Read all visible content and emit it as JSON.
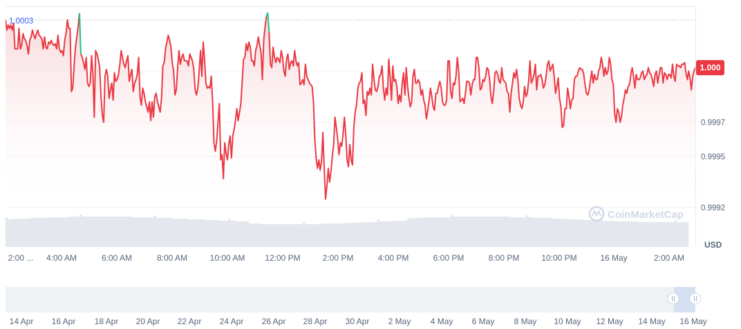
{
  "chart_data": {
    "type": "line",
    "currency_label": "USD",
    "watermark": "CoinMarketCap",
    "reference_label": "1.0003",
    "current_price_label": "1.000",
    "colors": {
      "line": "#ea3943",
      "up": "#16c784",
      "fill_top": "#f7d2d5",
      "reference": "#3861fb",
      "badge": "#ea3943"
    },
    "y_ticks": [
      "1.000",
      "0.9997",
      "0.9995",
      "0.9992"
    ],
    "x_ticks": [
      "2:00 ...",
      "4:00 AM",
      "6:00 AM",
      "8:00 AM",
      "10:00 AM",
      "12:00 PM",
      "2:00 PM",
      "4:00 PM",
      "6:00 PM",
      "8:00 PM",
      "10:00 PM",
      "16 May",
      "2:00 AM"
    ],
    "navigator_ticks": [
      "14 Apr",
      "16 Apr",
      "18 Apr",
      "20 Apr",
      "22 Apr",
      "24 Apr",
      "26 Apr",
      "28 Apr",
      "30 Apr",
      "2 May",
      "4 May",
      "6 May",
      "8 May",
      "10 May",
      "12 May",
      "14 May",
      "16 May"
    ],
    "ylim": [
      0.99918,
      1.00038
    ],
    "reference_value": 1.0003,
    "series": [
      {
        "values": [
          1.0003,
          1.00024,
          1.00027,
          1.00025,
          1.00027,
          1.00024,
          1.00028,
          1.00013,
          1.00013,
          1.00013,
          1.00025,
          1.00013,
          1.00015,
          1.00022,
          1.00019,
          1.00018,
          1.00015,
          1.0001,
          1.00018,
          1.0002,
          1.00024,
          1.00021,
          1.00019,
          1.00022,
          1.00024,
          1.00021,
          1.0002,
          1.00019,
          1.00013,
          1.0002,
          1.00014,
          1.00013,
          1.00017,
          1.00016,
          1.00018,
          1.00016,
          1.00015,
          1.00016,
          1.00013,
          1.00021,
          1.00013,
          1.00011,
          1.00012,
          1.00009,
          1.00018,
          1.00022,
          1.0003,
          1.00025,
          1.00025,
          0.99988,
          0.9999,
          1.00003,
          1.00014,
          1.0002,
          1.00026,
          1.00034,
          1.0001,
          1.00008,
          1.00005,
          1.00001,
          1.00008,
          0.99993,
          0.99991,
          0.99993,
          1.00009,
          0.99998,
          0.99973,
          1.00012,
          1.0001,
          1.00007,
          1.00002,
          0.99985,
          0.99974,
          0.9997,
          0.99997,
          1.00001,
          0.99997,
          0.99984,
          0.99989,
          0.99993,
          0.99983,
          0.99999,
          0.99994,
          0.99995,
          0.99998,
          1.00004,
          1.00012,
          1.00008,
          1.00004,
          1.00002,
          1.00006,
          1.00009,
          0.99994,
          0.99998,
          1.00001,
          0.99988,
          0.99993,
          0.99995,
          0.99998,
          1.00008,
          0.99985,
          0.9998,
          0.9999,
          0.99987,
          0.99982,
          0.99979,
          0.99976,
          0.99982,
          0.99971,
          0.99982,
          0.99973,
          0.99985,
          0.99987,
          0.99982,
          0.99979,
          0.99976,
          0.99984,
          1.00003,
          1.00005,
          1.00013,
          1.00017,
          1.00021,
          1.00018,
          1.00014,
          1.00005,
          1.0,
          0.99986,
          0.99989,
          1.00002,
          1.00012,
          1.00004,
          1.00008,
          1.0001,
          1.00006,
          1.00006,
          1.00006,
          1.00003,
          1.0001,
          1.00008,
          1.00006,
          1.00001,
          0.99989,
          0.99986,
          0.9999,
          1.0,
          1.00012,
          0.99997,
          1.00017,
          1.00007,
          0.99993,
          0.9999,
          0.99991,
          0.9999,
          0.99997,
          0.99982,
          0.99958,
          0.99953,
          0.99959,
          0.9997,
          0.99981,
          0.99948,
          0.99951,
          0.99937,
          0.99958,
          0.99952,
          0.99948,
          0.99957,
          0.99962,
          0.99949,
          0.99962,
          0.99966,
          0.99971,
          0.99978,
          0.99971,
          0.99976,
          0.99981,
          0.99994,
          1.00007,
          1.00008,
          1.00016,
          1.00012,
          1.00017,
          1.00014,
          1.00006,
          1.00006,
          1.00003,
          1.00012,
          1.00015,
          1.0002,
          1.00015,
          1.00011,
          0.99995,
          1.00018,
          1.00026,
          1.00032,
          1.00034,
          1.00023,
          1.00004,
          1.00002,
          1.00014,
          1.00008,
          1.00005,
          1.00008,
          1.00007,
          1.00005,
          1.00012,
          1.00008,
          1.0,
          0.99997,
          1.00007,
          1.0001,
          1.00001,
          1.00005,
          1.00006,
          1.00003,
          1.00012,
          1.00006,
          1.00003,
          1.00005,
          0.99992,
          0.99993,
          0.99995,
          0.99992,
          1.00004,
          0.99997,
          0.99995,
          0.99993,
          0.99992,
          0.99991,
          0.99982,
          0.9996,
          0.99949,
          0.99943,
          0.99948,
          0.99942,
          0.99947,
          0.99964,
          0.99943,
          0.99925,
          0.99933,
          0.99943,
          0.99935,
          0.99941,
          0.9995,
          0.99957,
          0.99973,
          0.99967,
          0.9996,
          0.99951,
          0.99958,
          0.99956,
          0.99963,
          0.99973,
          0.99963,
          0.99948,
          0.99944,
          0.99957,
          0.99948,
          0.99945,
          0.99967,
          0.99976,
          0.9998,
          0.9999,
          0.99993,
          0.99994,
          0.99999,
          0.99981,
          0.99983,
          0.99974,
          0.99988,
          0.99986,
          0.9999,
          0.99986,
          1.00004,
          0.99995,
          0.99989,
          0.99988,
          0.99991,
          0.99997,
          0.99998,
          1.00003,
          0.9999,
          0.99983,
          0.9999,
          0.99986,
          1.00007,
          0.99996,
          0.99983,
          1.00003,
          0.99994,
          0.99995,
          0.99991,
          0.99981,
          0.99986,
          0.99982,
          0.99993,
          0.99999,
          0.99986,
          1.00002,
          0.99991,
          0.99984,
          0.99979,
          0.99982,
          0.99997,
          1.00001,
          0.99993,
          0.99993,
          0.99995,
          0.99993,
          0.99986,
          0.99989,
          0.99983,
          0.9998,
          0.99972,
          0.99977,
          0.99983,
          0.9999,
          0.99985,
          0.99979,
          0.99977,
          0.99987,
          0.99987,
          0.99991,
          0.99994,
          0.9999,
          0.99982,
          0.9998,
          0.9998,
          0.99983,
          1.00006,
          1.00006,
          0.99988,
          0.99984,
          0.99993,
          0.99992,
          0.99997,
          1.00008,
          1.0,
          0.99982,
          0.99983,
          0.99984,
          0.99981,
          0.99987,
          0.99994,
          0.99994,
          0.99993,
          0.99986,
          0.99992,
          0.99995,
          0.99995,
          1.00008,
          1.00008,
          1.00002,
          0.99989,
          0.9999,
          0.99995,
          0.99994,
          0.99997,
          1.00002,
          1.00001,
          0.99995,
          0.99985,
          0.99981,
          0.99988,
          0.99999,
          1.0,
          0.99998,
          0.99994,
          0.99993,
          1.00002,
          0.99995,
          0.99994,
          0.99993,
          0.99988,
          0.99987,
          0.99976,
          0.99987,
          0.99993,
          0.99999,
          0.99996,
          1.00001,
          0.99995,
          0.99984,
          0.9998,
          0.99978,
          0.99982,
          0.99991,
          0.99985,
          0.99987,
          0.99994,
          1.00006,
          0.99993,
          0.99995,
          0.99998,
          1.00004,
          0.99989,
          0.99997,
          0.99997,
          0.99998,
          0.99995,
          0.9999,
          0.99992,
          0.99997,
          1.00004,
          1.00006,
          1.0,
          1.00002,
          1.00004,
          0.99997,
          0.99987,
          0.99991,
          0.99996,
          0.99984,
          0.99979,
          0.99967,
          0.99968,
          0.99978,
          0.99978,
          0.9999,
          0.99985,
          0.99978,
          0.99983,
          0.99984,
          0.99995,
          0.99997,
          0.99997,
          1.0,
          1.00002,
          1.00001,
          1.00001,
          0.99998,
          0.99992,
          0.99987,
          0.99986,
          0.99989,
          0.99995,
          1.0,
          0.99993,
          0.99998,
          0.99995,
          0.99995,
          1.0,
          1.00002,
          1.00008,
          1.00004,
          0.99997,
          1.00002,
          0.99998,
          1.0,
          1.00008,
          1.00004,
          0.99995,
          0.99992,
          0.99975,
          0.9997,
          0.99978,
          0.99976,
          0.9997,
          0.99973,
          0.9998,
          0.99984,
          0.99989,
          0.99987,
          0.99991,
          0.99992,
          0.99998,
          1.00002,
          0.99997,
          0.9999,
          0.99998,
          0.99995,
          0.99995,
          0.99996,
          0.99999,
          1.0,
          0.99995,
          0.99997,
          0.99998,
          1.00002,
          0.99999,
          0.99998,
          0.99995,
          0.99991,
          0.99998,
          1.0,
          0.99993,
          0.99998,
          1.00002,
          1.00002,
          0.99993,
          0.99999,
          0.99998,
          0.99995,
          0.99998,
          0.99998,
          0.99996,
          1.00004,
          0.99997,
          0.99994,
          1.00004,
          1.00003,
          1.00003,
          1.00002,
          1.00004,
          1.00004,
          1.00005,
          0.99999,
          0.99995,
          1.0,
          0.99996,
          0.99989,
          0.99997,
          1.0,
          1.00002
        ]
      }
    ]
  }
}
